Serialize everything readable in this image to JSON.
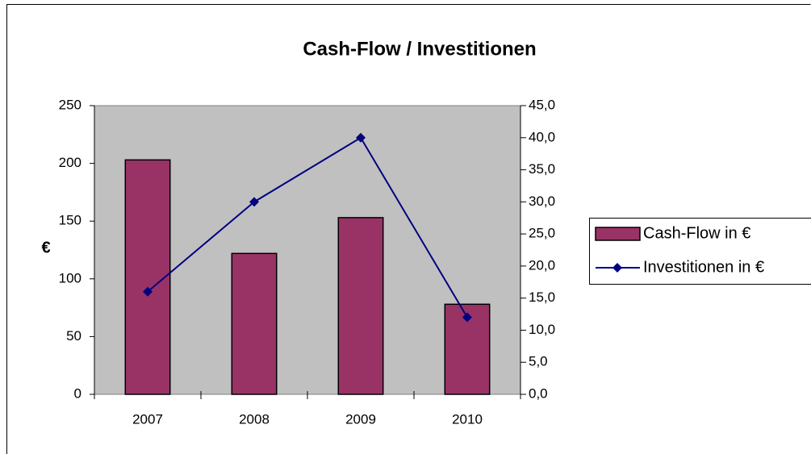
{
  "chart_data": {
    "type": "bar_line",
    "title": "Cash-Flow / Investitionen",
    "ylabel": "€",
    "categories": [
      "2007",
      "2008",
      "2009",
      "2010"
    ],
    "series": [
      {
        "name": "Cash-Flow in €",
        "color": "#993366",
        "type": "bar",
        "values": [
          203,
          122,
          153,
          78
        ]
      },
      {
        "name": "Investitionen in €",
        "color": "#000080",
        "type": "line",
        "axis": "y2",
        "values": [
          16,
          30,
          40,
          12
        ]
      }
    ],
    "ylim": [
      0,
      250
    ],
    "yticks": [
      0,
      50,
      100,
      150,
      200,
      250
    ],
    "y2lim": [
      0,
      45
    ],
    "y2ticks": [
      {
        "value": 0,
        "label": "0,0"
      },
      {
        "value": 5,
        "label": "5,0"
      },
      {
        "value": 10,
        "label": "10,0"
      },
      {
        "value": 15,
        "label": "15,0"
      },
      {
        "value": 20,
        "label": "20,0"
      },
      {
        "value": 25,
        "label": "25,0"
      },
      {
        "value": 30,
        "label": "30,0"
      },
      {
        "value": 35,
        "label": "35,0"
      },
      {
        "value": 40,
        "label": "40,0"
      },
      {
        "value": 45,
        "label": "45,0"
      }
    ],
    "plot_background": "#c0c0c0",
    "grid": false,
    "legend": "right"
  }
}
